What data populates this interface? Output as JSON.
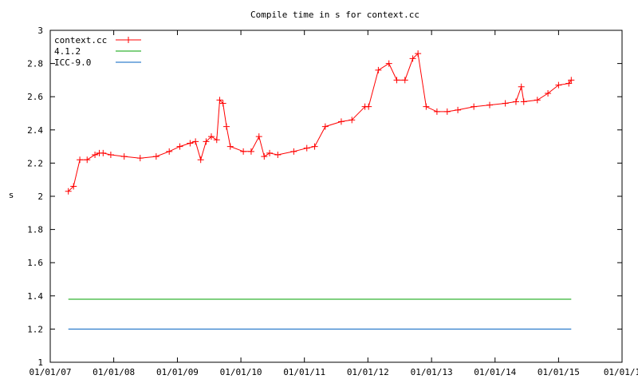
{
  "chart_data": {
    "type": "line",
    "title": "Compile time in s for context.cc",
    "xlabel": "",
    "ylabel": "s",
    "ylim": [
      1,
      3
    ],
    "yticks": [
      "1",
      "1.2",
      "1.4",
      "1.6",
      "1.8",
      "2",
      "2.2",
      "2.4",
      "2.6",
      "2.8",
      "3"
    ],
    "xlim": [
      "2007-01-01",
      "2016-01-01"
    ],
    "xticks": [
      "01/01/07",
      "01/01/08",
      "01/01/09",
      "01/01/10",
      "01/01/11",
      "01/01/12",
      "01/01/13",
      "01/01/14",
      "01/01/15",
      "01/01/1"
    ],
    "legend_position": "top-left",
    "grid": false,
    "series": [
      {
        "name": "context.cc",
        "color": "#ff0000",
        "marker": "plus",
        "x": [
          "2007-04-15",
          "2007-05-15",
          "2007-06-20",
          "2007-08-01",
          "2007-09-15",
          "2007-10-10",
          "2007-11-01",
          "2007-12-15",
          "2008-03-01",
          "2008-06-01",
          "2008-09-01",
          "2008-11-15",
          "2009-01-15",
          "2009-03-15",
          "2009-04-15",
          "2009-05-15",
          "2009-06-15",
          "2009-07-15",
          "2009-08-15",
          "2009-09-01",
          "2009-09-20",
          "2009-10-10",
          "2009-11-01",
          "2010-01-15",
          "2010-03-01",
          "2010-04-15",
          "2010-05-15",
          "2010-06-15",
          "2010-08-01",
          "2010-11-01",
          "2011-01-15",
          "2011-03-01",
          "2011-05-01",
          "2011-08-01",
          "2011-10-01",
          "2011-12-15",
          "2012-01-05",
          "2012-03-01",
          "2012-05-01",
          "2012-06-15",
          "2012-08-01",
          "2012-09-15",
          "2012-10-15",
          "2012-12-01",
          "2013-02-01",
          "2013-04-01",
          "2013-06-01",
          "2013-09-01",
          "2013-12-01",
          "2014-03-01",
          "2014-05-01",
          "2014-06-01",
          "2014-06-15",
          "2014-09-01",
          "2014-11-01",
          "2015-01-01",
          "2015-03-01",
          "2015-03-15"
        ],
        "y": [
          2.03,
          2.06,
          2.22,
          2.22,
          2.25,
          2.26,
          2.26,
          2.25,
          2.24,
          2.23,
          2.24,
          2.27,
          2.3,
          2.32,
          2.33,
          2.22,
          2.33,
          2.36,
          2.34,
          2.58,
          2.56,
          2.42,
          2.3,
          2.27,
          2.27,
          2.36,
          2.24,
          2.26,
          2.25,
          2.27,
          2.29,
          2.3,
          2.42,
          2.45,
          2.46,
          2.54,
          2.54,
          2.76,
          2.8,
          2.7,
          2.7,
          2.83,
          2.86,
          2.54,
          2.51,
          2.51,
          2.52,
          2.54,
          2.55,
          2.56,
          2.57,
          2.66,
          2.57,
          2.58,
          2.62,
          2.67,
          2.68,
          2.7
        ]
      },
      {
        "name": "4.1.2",
        "color": "#00a000",
        "x": [
          "2007-04-15",
          "2015-03-15"
        ],
        "y": [
          1.38,
          1.38
        ]
      },
      {
        "name": "ICC-9.0",
        "color": "#0060c0",
        "x": [
          "2007-04-15",
          "2015-03-15"
        ],
        "y": [
          1.2,
          1.2
        ]
      }
    ]
  }
}
